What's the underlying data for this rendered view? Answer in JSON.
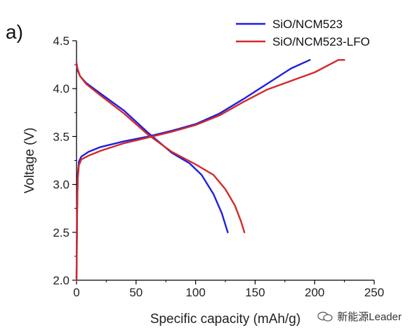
{
  "panel_label": "a)",
  "watermark": {
    "text": "新能源Leader"
  },
  "chart_data": {
    "type": "line",
    "title": "",
    "xlabel": "Specific capacity (mAh/g)",
    "ylabel": "Voltage (V)",
    "xlim": [
      0,
      250
    ],
    "ylim": [
      2.0,
      4.5
    ],
    "xticks": [
      0,
      50,
      100,
      150,
      200,
      250
    ],
    "yticks": [
      2.0,
      2.5,
      3.0,
      3.5,
      4.0,
      4.5
    ],
    "ytick_labels": [
      "2.0",
      "2.5",
      "3.0",
      "3.5",
      "4.0",
      "4.5"
    ],
    "grid": false,
    "legend_position": "top-right",
    "series": [
      {
        "name": "SiO/NCM523",
        "color": "#1f1fe0",
        "charge": {
          "x": [
            0,
            0.5,
            1,
            2,
            4,
            10,
            20,
            40,
            60,
            80,
            100,
            120,
            140,
            160,
            180,
            196
          ],
          "y": [
            2.0,
            2.7,
            3.1,
            3.24,
            3.29,
            3.34,
            3.39,
            3.45,
            3.5,
            3.56,
            3.63,
            3.74,
            3.89,
            4.05,
            4.21,
            4.3
          ]
        },
        "discharge": {
          "x": [
            0,
            1,
            3,
            8,
            20,
            40,
            60,
            80,
            95,
            105,
            115,
            122,
            127
          ],
          "y": [
            4.25,
            4.19,
            4.13,
            4.06,
            3.95,
            3.77,
            3.54,
            3.33,
            3.22,
            3.1,
            2.9,
            2.7,
            2.5
          ]
        }
      },
      {
        "name": "SiO/NCM523-LFO",
        "color": "#d12a2a",
        "charge": {
          "x": [
            0,
            0.5,
            1,
            2,
            4,
            10,
            20,
            40,
            60,
            80,
            100,
            120,
            140,
            160,
            180,
            200,
            220,
            225
          ],
          "y": [
            2.0,
            2.65,
            3.05,
            3.2,
            3.26,
            3.3,
            3.35,
            3.43,
            3.49,
            3.55,
            3.62,
            3.72,
            3.86,
            3.99,
            4.08,
            4.17,
            4.3,
            4.3
          ]
        },
        "discharge": {
          "x": [
            0,
            1,
            3,
            8,
            20,
            40,
            60,
            80,
            100,
            115,
            125,
            133,
            138,
            141
          ],
          "y": [
            4.27,
            4.2,
            4.13,
            4.05,
            3.93,
            3.74,
            3.52,
            3.34,
            3.21,
            3.1,
            2.95,
            2.78,
            2.62,
            2.5
          ]
        }
      }
    ]
  }
}
